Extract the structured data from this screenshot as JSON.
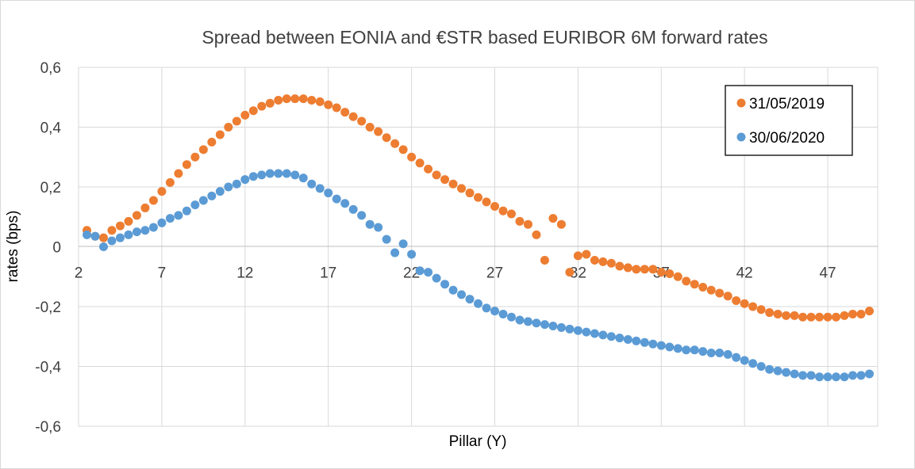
{
  "chart_data": {
    "type": "scatter",
    "title": "Spread between EONIA and €STR based EURIBOR 6M forward rates",
    "xlabel": "Pillar (Y)",
    "ylabel": "rates (bps)",
    "xlim": [
      2,
      50
    ],
    "ylim": [
      -0.6,
      0.6
    ],
    "x_ticks": [
      2,
      7,
      12,
      17,
      22,
      27,
      32,
      37,
      42,
      47
    ],
    "x_tick_labels": [
      "2",
      "7",
      "12",
      "17",
      "22",
      "27",
      "32",
      "37",
      "42",
      "47"
    ],
    "y_ticks": [
      0.6,
      0.4,
      0.2,
      0,
      -0.2,
      -0.4,
      -0.6
    ],
    "y_tick_labels": [
      "0,6",
      "0,4",
      "0,2",
      "0",
      "-0,2",
      "-0,4",
      "-0,6"
    ],
    "grid": true,
    "legend_position": "top-right",
    "series": [
      {
        "name": "31/05/2019",
        "color": "#ED7D31",
        "x": [
          2.5,
          3,
          3.5,
          4,
          4.5,
          5,
          5.5,
          6,
          6.5,
          7,
          7.5,
          8,
          8.5,
          9,
          9.5,
          10,
          10.5,
          11,
          11.5,
          12,
          12.5,
          13,
          13.5,
          14,
          14.5,
          15,
          15.5,
          16,
          16.5,
          17,
          17.5,
          18,
          18.5,
          19,
          19.5,
          20,
          20.5,
          21,
          21.5,
          22,
          22.5,
          23,
          23.5,
          24,
          24.5,
          25,
          25.5,
          26,
          26.5,
          27,
          27.5,
          28,
          28.5,
          29,
          29.5,
          30,
          30.5,
          31,
          31.5,
          32,
          32.5,
          33,
          33.5,
          34,
          34.5,
          35,
          35.5,
          36,
          36.5,
          37,
          37.5,
          38,
          38.5,
          39,
          39.5,
          40,
          40.5,
          41,
          41.5,
          42,
          42.5,
          43,
          43.5,
          44,
          44.5,
          45,
          45.5,
          46,
          46.5,
          47,
          47.5,
          48,
          48.5,
          49,
          49.5
        ],
        "y": [
          0.055,
          0.035,
          0.03,
          0.055,
          0.07,
          0.085,
          0.105,
          0.13,
          0.155,
          0.185,
          0.215,
          0.245,
          0.275,
          0.3,
          0.325,
          0.35,
          0.375,
          0.4,
          0.42,
          0.44,
          0.455,
          0.47,
          0.48,
          0.49,
          0.495,
          0.495,
          0.495,
          0.49,
          0.485,
          0.475,
          0.465,
          0.45,
          0.435,
          0.42,
          0.4,
          0.385,
          0.365,
          0.345,
          0.325,
          0.3,
          0.28,
          0.26,
          0.24,
          0.225,
          0.21,
          0.195,
          0.18,
          0.165,
          0.15,
          0.135,
          0.12,
          0.11,
          0.085,
          0.075,
          0.04,
          -0.045,
          0.095,
          0.075,
          -0.085,
          -0.03,
          -0.025,
          -0.045,
          -0.05,
          -0.055,
          -0.065,
          -0.07,
          -0.075,
          -0.075,
          -0.075,
          -0.085,
          -0.09,
          -0.1,
          -0.115,
          -0.125,
          -0.135,
          -0.145,
          -0.155,
          -0.165,
          -0.18,
          -0.19,
          -0.2,
          -0.21,
          -0.22,
          -0.225,
          -0.23,
          -0.23,
          -0.235,
          -0.235,
          -0.235,
          -0.235,
          -0.235,
          -0.23,
          -0.225,
          -0.225,
          -0.215
        ]
      },
      {
        "name": "30/06/2020",
        "color": "#5B9BD5",
        "x": [
          2.5,
          3,
          3.5,
          4,
          4.5,
          5,
          5.5,
          6,
          6.5,
          7,
          7.5,
          8,
          8.5,
          9,
          9.5,
          10,
          10.5,
          11,
          11.5,
          12,
          12.5,
          13,
          13.5,
          14,
          14.5,
          15,
          15.5,
          16,
          16.5,
          17,
          17.5,
          18,
          18.5,
          19,
          19.5,
          20,
          20.5,
          21,
          21.5,
          22,
          22.5,
          23,
          23.5,
          24,
          24.5,
          25,
          25.5,
          26,
          26.5,
          27,
          27.5,
          28,
          28.5,
          29,
          29.5,
          30,
          30.5,
          31,
          31.5,
          32,
          32.5,
          33,
          33.5,
          34,
          34.5,
          35,
          35.5,
          36,
          36.5,
          37,
          37.5,
          38,
          38.5,
          39,
          39.5,
          40,
          40.5,
          41,
          41.5,
          42,
          42.5,
          43,
          43.5,
          44,
          44.5,
          45,
          45.5,
          46,
          46.5,
          47,
          47.5,
          48,
          48.5,
          49,
          49.5
        ],
        "y": [
          0.04,
          0.035,
          0.0,
          0.02,
          0.03,
          0.04,
          0.05,
          0.055,
          0.065,
          0.08,
          0.095,
          0.105,
          0.12,
          0.14,
          0.155,
          0.17,
          0.185,
          0.2,
          0.21,
          0.225,
          0.235,
          0.24,
          0.245,
          0.245,
          0.245,
          0.24,
          0.23,
          0.21,
          0.195,
          0.18,
          0.16,
          0.145,
          0.125,
          0.105,
          0.075,
          0.065,
          0.025,
          -0.02,
          0.01,
          -0.025,
          -0.08,
          -0.085,
          -0.105,
          -0.125,
          -0.145,
          -0.16,
          -0.175,
          -0.19,
          -0.205,
          -0.215,
          -0.225,
          -0.235,
          -0.245,
          -0.25,
          -0.255,
          -0.26,
          -0.265,
          -0.27,
          -0.275,
          -0.28,
          -0.285,
          -0.29,
          -0.295,
          -0.3,
          -0.305,
          -0.31,
          -0.315,
          -0.32,
          -0.325,
          -0.33,
          -0.335,
          -0.34,
          -0.345,
          -0.345,
          -0.35,
          -0.355,
          -0.355,
          -0.36,
          -0.37,
          -0.38,
          -0.39,
          -0.4,
          -0.41,
          -0.415,
          -0.42,
          -0.425,
          -0.43,
          -0.43,
          -0.435,
          -0.435,
          -0.435,
          -0.435,
          -0.43,
          -0.43,
          -0.425
        ]
      }
    ]
  }
}
